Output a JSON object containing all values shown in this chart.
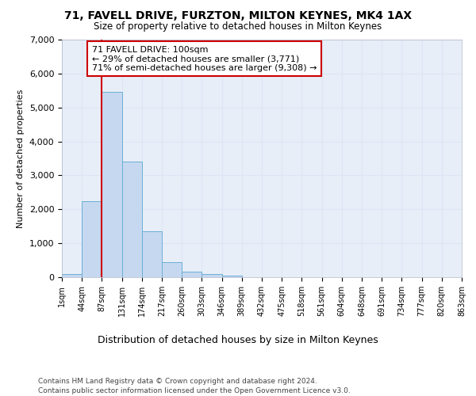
{
  "title_line1": "71, FAVELL DRIVE, FURZTON, MILTON KEYNES, MK4 1AX",
  "title_line2": "Size of property relative to detached houses in Milton Keynes",
  "xlabel": "Distribution of detached houses by size in Milton Keynes",
  "ylabel": "Number of detached properties",
  "footnote1": "Contains HM Land Registry data © Crown copyright and database right 2024.",
  "footnote2": "Contains public sector information licensed under the Open Government Licence v3.0.",
  "bin_labels": [
    "1sqm",
    "44sqm",
    "87sqm",
    "131sqm",
    "174sqm",
    "217sqm",
    "260sqm",
    "303sqm",
    "346sqm",
    "389sqm",
    "432sqm",
    "475sqm",
    "518sqm",
    "561sqm",
    "604sqm",
    "648sqm",
    "691sqm",
    "734sqm",
    "777sqm",
    "820sqm",
    "863sqm"
  ],
  "bar_values": [
    100,
    2250,
    5450,
    3400,
    1350,
    450,
    175,
    100,
    50,
    0,
    0,
    0,
    0,
    0,
    0,
    0,
    0,
    0,
    0,
    0
  ],
  "bar_color": "#c5d8f0",
  "bar_edge_color": "#6baed6",
  "red_line_x": 2,
  "annotation_text": "71 FAVELL DRIVE: 100sqm\n← 29% of detached houses are smaller (3,771)\n71% of semi-detached houses are larger (9,308) →",
  "red_line_color": "#cc0000",
  "annotation_box_color": "#ffffff",
  "annotation_box_edge": "#cc0000",
  "ylim": [
    0,
    7000
  ],
  "yticks": [
    0,
    1000,
    2000,
    3000,
    4000,
    5000,
    6000,
    7000
  ],
  "grid_color": "#dce6f5",
  "bg_color": "#e8eef8"
}
